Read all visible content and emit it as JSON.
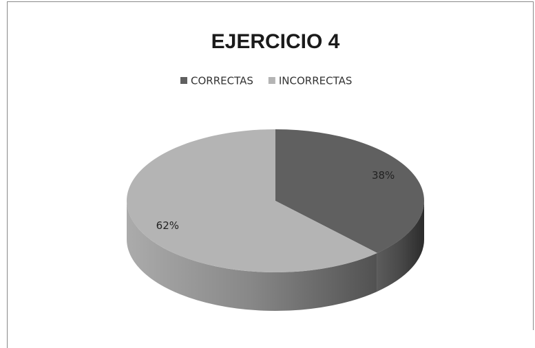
{
  "chart_data": {
    "type": "pie",
    "title": "EJERCICIO 4",
    "categories": [
      "CORRECTAS",
      "INCORRECTAS"
    ],
    "values": [
      38,
      62
    ],
    "value_labels": [
      "38%",
      "62%"
    ],
    "colors": [
      "#606060",
      "#b4b4b4"
    ],
    "legend": "top"
  }
}
